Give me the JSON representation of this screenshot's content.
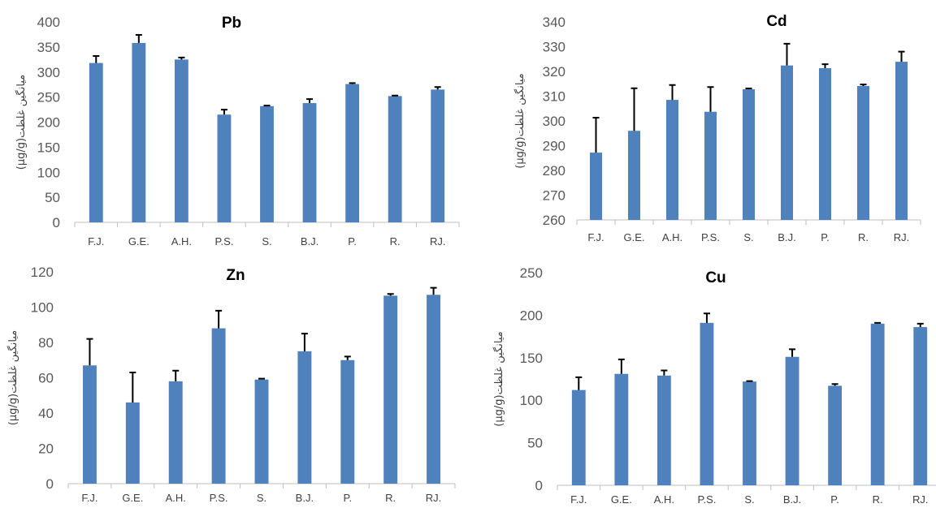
{
  "chart_data": [
    {
      "type": "bar",
      "title": "Pb",
      "ylabel": "(µg/g)میانگین غلظت",
      "categories": [
        "F.J.",
        "G.E.",
        "A.H.",
        "P.S.",
        "S.",
        "B.J.",
        "P.",
        "R.",
        "RJ."
      ],
      "values": [
        318,
        358,
        325,
        215,
        232,
        238,
        276,
        252,
        265
      ],
      "errors": [
        14,
        16,
        4,
        10,
        1,
        8,
        2,
        1,
        5
      ],
      "ylim": [
        0,
        400
      ],
      "yticks": [
        0,
        50,
        100,
        150,
        200,
        250,
        300,
        350,
        400
      ],
      "grid": false,
      "legend": "none",
      "color": "#4f81bd"
    },
    {
      "type": "bar",
      "title": "Cd",
      "ylabel": "(µg/g)میانگین غلظت",
      "categories": [
        "F.J.",
        "G.E.",
        "A.H.",
        "P.S.",
        "S.",
        "B.J.",
        "P.",
        "R.",
        "RJ."
      ],
      "values": [
        287.2,
        296,
        308.5,
        303.7,
        312.8,
        322.4,
        321.3,
        314.1,
        323.9
      ],
      "errors": [
        14.1,
        17.2,
        6,
        10,
        0.3,
        8.8,
        1.6,
        0.6,
        4.1
      ],
      "ylim": [
        260,
        340
      ],
      "yticks": [
        260,
        270,
        280,
        290,
        300,
        310,
        320,
        330,
        340
      ],
      "grid": false,
      "legend": "none",
      "color": "#4f81bd"
    },
    {
      "type": "bar",
      "title": "Zn",
      "ylabel": "(µg/g)میانگین غلظت",
      "categories": [
        "F.J.",
        "G.E.",
        "A.H.",
        "P.S.",
        "S.",
        "B.J.",
        "P.",
        "R.",
        "RJ."
      ],
      "values": [
        67,
        46,
        58,
        88,
        59,
        75,
        70,
        106.5,
        107
      ],
      "errors": [
        15,
        17,
        6,
        10,
        0.5,
        10,
        2,
        1,
        4
      ],
      "ylim": [
        0,
        120
      ],
      "yticks": [
        0,
        20,
        40,
        60,
        80,
        100,
        120
      ],
      "grid": false,
      "legend": "none",
      "color": "#4f81bd"
    },
    {
      "type": "bar",
      "title": "Cu",
      "ylabel": "(µg/g)میانگین غلظت",
      "categories": [
        "F.J.",
        "G.E.",
        "A.H.",
        "P.S.",
        "S.",
        "B.J.",
        "P.",
        "R.",
        "RJ."
      ],
      "values": [
        112,
        131,
        129,
        191,
        122,
        151,
        117,
        190,
        186
      ],
      "errors": [
        15,
        17,
        6,
        11,
        0.5,
        9,
        2,
        1,
        4
      ],
      "ylim": [
        0,
        250
      ],
      "yticks": [
        0,
        50,
        100,
        150,
        200,
        250
      ],
      "grid": false,
      "legend": "none",
      "color": "#4f81bd"
    }
  ]
}
